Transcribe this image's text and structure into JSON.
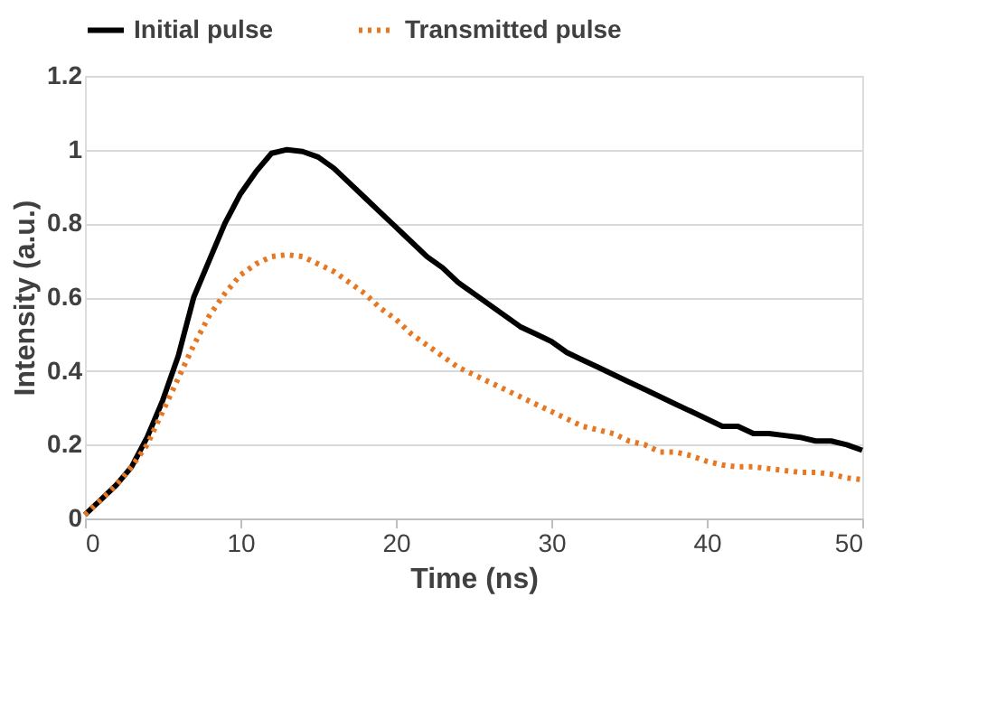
{
  "chart_data": {
    "type": "line",
    "xlabel": "Time (ns)",
    "ylabel": "Intensity (a.u.)",
    "x": [
      0,
      1,
      2,
      3,
      4,
      5,
      6,
      7,
      8,
      9,
      10,
      11,
      12,
      13,
      14,
      15,
      16,
      17,
      18,
      19,
      20,
      21,
      22,
      23,
      24,
      25,
      26,
      27,
      28,
      29,
      30,
      31,
      32,
      33,
      34,
      35,
      36,
      37,
      38,
      39,
      40,
      41,
      42,
      43,
      44,
      45,
      46,
      47,
      48,
      49,
      50
    ],
    "series": [
      {
        "name": "Initial pulse",
        "color": "#000000",
        "line_style": "solid",
        "values": [
          0.01,
          0.05,
          0.09,
          0.14,
          0.22,
          0.32,
          0.44,
          0.6,
          0.7,
          0.8,
          0.88,
          0.94,
          0.99,
          1.0,
          0.995,
          0.98,
          0.95,
          0.91,
          0.87,
          0.83,
          0.79,
          0.75,
          0.71,
          0.68,
          0.64,
          0.61,
          0.58,
          0.55,
          0.52,
          0.5,
          0.48,
          0.45,
          0.43,
          0.41,
          0.39,
          0.37,
          0.35,
          0.33,
          0.31,
          0.29,
          0.27,
          0.25,
          0.25,
          0.23,
          0.23,
          0.225,
          0.22,
          0.21,
          0.21,
          0.2,
          0.185
        ]
      },
      {
        "name": "Transmitted pulse",
        "color": "#e87722",
        "line_style": "dotted",
        "values": [
          0.01,
          0.05,
          0.09,
          0.14,
          0.2,
          0.29,
          0.38,
          0.47,
          0.55,
          0.61,
          0.66,
          0.69,
          0.71,
          0.715,
          0.71,
          0.69,
          0.67,
          0.64,
          0.61,
          0.57,
          0.54,
          0.5,
          0.47,
          0.44,
          0.41,
          0.39,
          0.37,
          0.35,
          0.33,
          0.31,
          0.29,
          0.27,
          0.25,
          0.24,
          0.23,
          0.21,
          0.2,
          0.18,
          0.18,
          0.17,
          0.155,
          0.145,
          0.14,
          0.14,
          0.135,
          0.13,
          0.125,
          0.125,
          0.12,
          0.11,
          0.105
        ]
      }
    ],
    "xlim": [
      0,
      50
    ],
    "xticks": [
      0,
      10,
      20,
      30,
      40,
      50
    ],
    "ylim": [
      0,
      1.2
    ],
    "yticks": [
      0,
      0.2,
      0.4,
      0.6,
      0.8,
      1,
      1.2
    ],
    "grid": "y",
    "legend": "top",
    "marker": "none"
  }
}
